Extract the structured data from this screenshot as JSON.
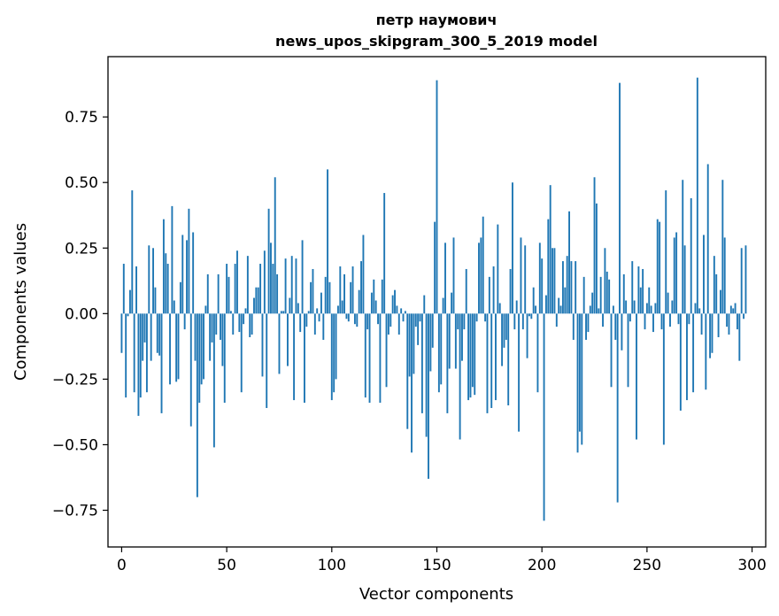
{
  "chart_data": {
    "type": "bar",
    "title": [
      "петр наумович",
      "news_upos_skipgram_300_5_2019 model"
    ],
    "xlabel": "Vector components",
    "ylabel": "Components values",
    "xlim": [
      -6.5,
      306.5
    ],
    "ylim": [
      -0.89,
      0.98
    ],
    "xticks": [
      0,
      50,
      100,
      150,
      200,
      250,
      300
    ],
    "xtick_labels": [
      "0",
      "50",
      "100",
      "150",
      "200",
      "250",
      "300"
    ],
    "yticks": [
      -0.75,
      -0.5,
      -0.25,
      0.0,
      0.25,
      0.5,
      0.75
    ],
    "ytick_labels": [
      "−0.75",
      "−0.50",
      "−0.25",
      "0.00",
      "0.25",
      "0.50",
      "0.75"
    ],
    "bar_color": "#1f77b4",
    "values": [
      -0.15,
      0.19,
      -0.32,
      -0.01,
      0.09,
      0.47,
      -0.3,
      0.18,
      -0.39,
      -0.32,
      -0.18,
      -0.11,
      -0.3,
      0.26,
      -0.18,
      0.25,
      0.1,
      -0.15,
      -0.16,
      -0.38,
      0.36,
      0.23,
      0.19,
      -0.27,
      0.41,
      0.05,
      -0.26,
      -0.25,
      0.12,
      0.3,
      -0.06,
      0.28,
      0.4,
      -0.43,
      0.31,
      -0.18,
      -0.7,
      -0.34,
      -0.27,
      -0.25,
      0.03,
      0.15,
      -0.18,
      -0.11,
      -0.51,
      -0.08,
      0.15,
      -0.1,
      -0.2,
      -0.34,
      0.19,
      0.14,
      0.01,
      -0.08,
      0.19,
      0.24,
      -0.07,
      -0.3,
      -0.04,
      0.02,
      0.22,
      -0.09,
      -0.08,
      0.06,
      0.1,
      0.1,
      0.19,
      -0.24,
      0.24,
      -0.36,
      0.4,
      0.27,
      0.19,
      0.52,
      0.15,
      -0.23,
      0.01,
      0.01,
      0.21,
      -0.2,
      0.06,
      0.22,
      -0.33,
      0.21,
      0.04,
      -0.07,
      0.28,
      -0.34,
      -0.05,
      0.01,
      0.12,
      0.17,
      -0.08,
      0.02,
      -0.03,
      0.08,
      -0.1,
      0.14,
      0.55,
      0.12,
      -0.33,
      -0.3,
      -0.25,
      0.03,
      0.18,
      0.05,
      0.15,
      -0.02,
      -0.03,
      0.12,
      0.18,
      -0.04,
      -0.05,
      0.09,
      0.2,
      0.3,
      -0.32,
      -0.06,
      -0.34,
      0.08,
      0.13,
      0.05,
      -0.04,
      -0.34,
      0.13,
      0.46,
      -0.28,
      -0.08,
      -0.05,
      0.07,
      0.09,
      0.03,
      -0.08,
      0.02,
      -0.03,
      0.01,
      -0.44,
      -0.24,
      -0.53,
      -0.23,
      -0.05,
      -0.12,
      -0.03,
      -0.38,
      0.07,
      -0.47,
      -0.63,
      -0.22,
      -0.13,
      0.35,
      0.89,
      -0.3,
      -0.27,
      0.06,
      0.27,
      -0.38,
      -0.21,
      0.08,
      0.29,
      -0.21,
      -0.06,
      -0.48,
      -0.18,
      -0.06,
      0.17,
      -0.33,
      -0.32,
      -0.28,
      -0.31,
      -0.03,
      0.27,
      0.29,
      0.37,
      -0.03,
      -0.38,
      0.14,
      -0.36,
      0.18,
      -0.33,
      0.34,
      0.04,
      -0.2,
      -0.13,
      -0.1,
      -0.35,
      0.17,
      0.5,
      -0.06,
      0.05,
      -0.45,
      0.29,
      -0.06,
      0.26,
      -0.17,
      -0.01,
      -0.02,
      0.1,
      0.03,
      -0.3,
      0.27,
      0.21,
      -0.79,
      0.07,
      0.36,
      0.49,
      0.25,
      0.25,
      -0.05,
      0.06,
      0.03,
      0.2,
      0.1,
      0.22,
      0.39,
      0.2,
      -0.1,
      0.2,
      -0.53,
      -0.45,
      -0.5,
      0.14,
      -0.1,
      -0.07,
      0.03,
      0.08,
      0.52,
      0.42,
      0.02,
      0.14,
      -0.05,
      0.25,
      0.16,
      0.13,
      -0.28,
      0.03,
      -0.1,
      -0.72,
      0.88,
      -0.14,
      0.15,
      0.05,
      -0.28,
      -0.03,
      0.2,
      0.05,
      -0.48,
      0.18,
      0.1,
      0.17,
      -0.06,
      0.04,
      0.1,
      0.03,
      -0.07,
      0.04,
      0.36,
      0.35,
      -0.06,
      -0.5,
      0.47,
      0.08,
      -0.05,
      0.05,
      0.29,
      0.31,
      -0.04,
      -0.37,
      0.51,
      0.26,
      -0.33,
      -0.04,
      0.44,
      -0.3,
      0.04,
      0.9,
      0.02,
      -0.08,
      0.3,
      -0.29,
      0.57,
      -0.17,
      -0.15,
      0.22,
      0.15,
      -0.09,
      0.09,
      0.51,
      0.29,
      -0.05,
      -0.08,
      0.03,
      0.02,
      0.04,
      -0.06,
      -0.18,
      0.25,
      -0.02,
      0.26
    ]
  }
}
